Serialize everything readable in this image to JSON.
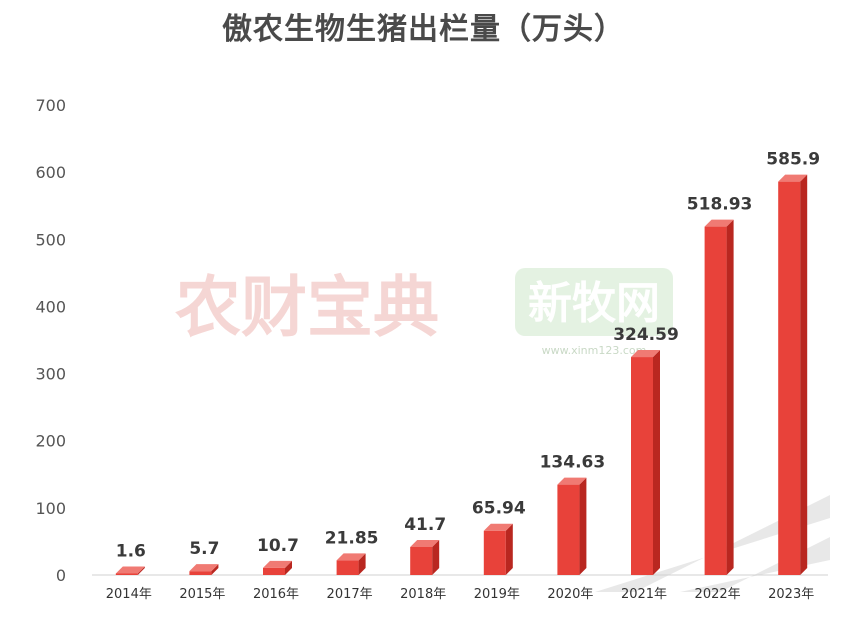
{
  "chart_data": {
    "type": "bar",
    "title": "傲农生物生猪出栏量（万头）",
    "categories": [
      "2014年",
      "2015年",
      "2016年",
      "2017年",
      "2018年",
      "2019年",
      "2020年",
      "2021年",
      "2022年",
      "2023年"
    ],
    "values": [
      1.6,
      5.7,
      10.7,
      21.85,
      41.7,
      65.94,
      134.63,
      324.59,
      518.93,
      585.9
    ],
    "data_labels": [
      "1.6",
      "5.7",
      "10.7",
      "21.85",
      "41.7",
      "65.94",
      "134.63",
      "324.59",
      "518.93",
      "585.9"
    ],
    "yticks": [
      "0",
      "100",
      "200",
      "300",
      "400",
      "500",
      "600",
      "700"
    ],
    "ylim": [
      0,
      700
    ],
    "grid": false,
    "xlabel": "",
    "ylabel": ""
  },
  "watermarks": {
    "left": "农财宝典",
    "right": "新牧网",
    "right_sub": "www.xinm123.com"
  },
  "colors": {
    "bar_front": "#e8423a",
    "bar_side": "#b92720",
    "bar_top": "#f07a73",
    "title": "#4a4a4a"
  }
}
